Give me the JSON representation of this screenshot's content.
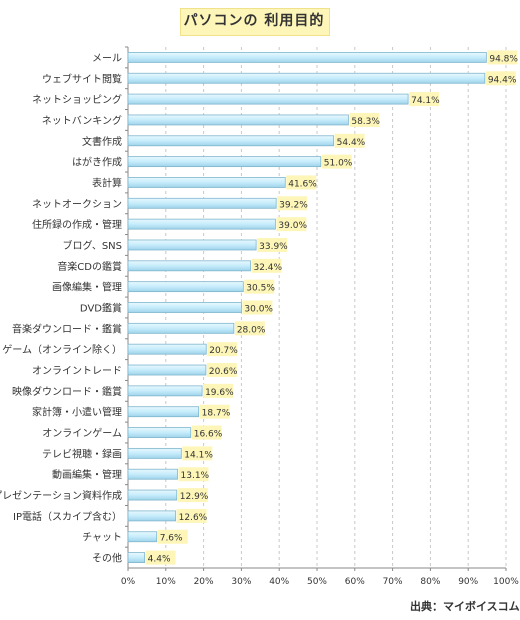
{
  "chart_data": {
    "type": "bar",
    "orientation": "horizontal",
    "title": "パソコンの 利用目的",
    "source": "出典：マイボイスコム",
    "categories": [
      "メール",
      "ウェブサイト閲覧",
      "ネットショッピング",
      "ネットバンキング",
      "文書作成",
      "はがき作成",
      "表計算",
      "ネットオークション",
      "住所録の作成・管理",
      "ブログ、SNS",
      "音楽CDの鑑賞",
      "画像編集・管理",
      "DVD鑑賞",
      "音楽ダウンロード・鑑賞",
      "ゲーム（オンライン除く）",
      "オンライントレード",
      "映像ダウンロード・鑑賞",
      "家計簿・小遣い管理",
      "オンラインゲーム",
      "テレビ視聴・録画",
      "動画編集・管理",
      "プレゼンテーション資料作成",
      "IP電話（スカイプ含む）",
      "チャット",
      "その他"
    ],
    "values": [
      94.8,
      94.4,
      74.1,
      58.3,
      54.4,
      51.0,
      41.6,
      39.2,
      39.0,
      33.9,
      32.4,
      30.5,
      30.0,
      28.0,
      20.7,
      20.6,
      19.6,
      18.7,
      16.6,
      14.1,
      13.1,
      12.9,
      12.6,
      7.6,
      4.4
    ],
    "value_labels": [
      "94.8%",
      "94.4%",
      "74.1%",
      "58.3%",
      "54.4%",
      "51.0%",
      "41.6%",
      "39.2%",
      "39.0%",
      "33.9%",
      "32.4%",
      "30.5%",
      "30.0%",
      "28.0%",
      "20.7%",
      "20.6%",
      "19.6%",
      "18.7%",
      "16.6%",
      "14.1%",
      "13.1%",
      "12.9%",
      "12.6%",
      "7.6%",
      "4.4%"
    ],
    "xlim": [
      0,
      100
    ],
    "xticks": [
      "0%",
      "10%",
      "20%",
      "30%",
      "40%",
      "50%",
      "60%",
      "70%",
      "80%",
      "90%",
      "100%"
    ],
    "grid": true,
    "colors": {
      "bar_fill": "#c6ecfb",
      "bar_edge": "#7fb6cc",
      "label_bg": "#fdf6b8",
      "grid": "#c8c8c8"
    }
  }
}
